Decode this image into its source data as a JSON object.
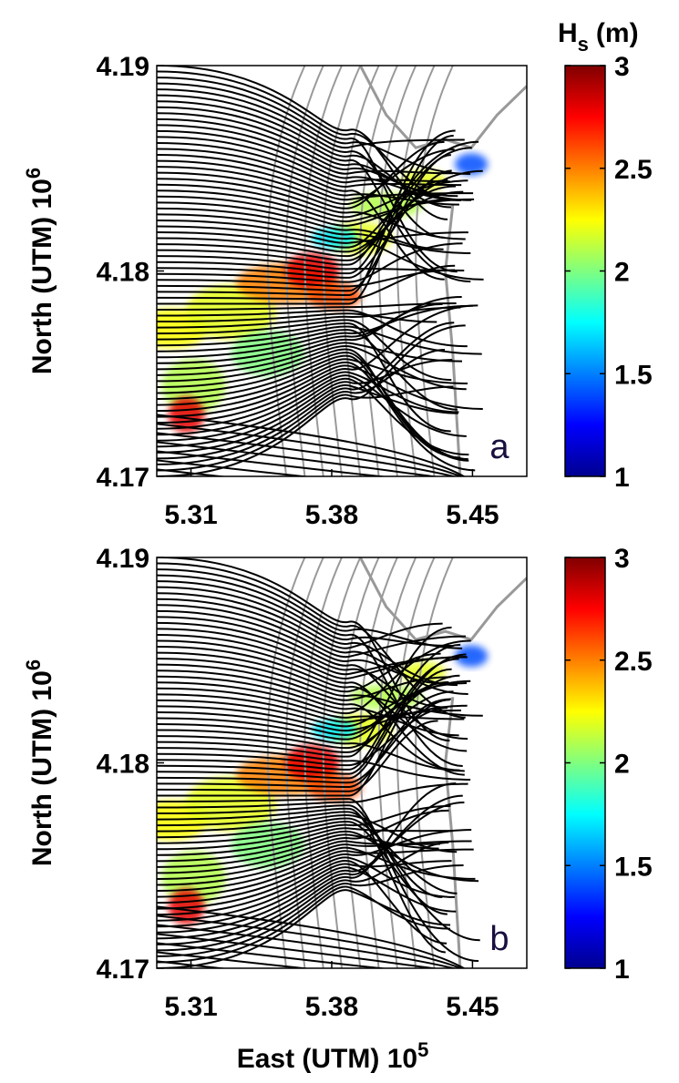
{
  "chart_data": [
    {
      "type": "map",
      "panel_label": "a",
      "xlim": [
        5.293,
        5.477
      ],
      "xticks": [
        5.31,
        5.38,
        5.45
      ],
      "ylim": [
        4.17,
        4.19
      ],
      "yticks": [
        4.19,
        4.18,
        4.17
      ],
      "y_label": "North (UTM) 10",
      "y_label_exponent": "6",
      "colorbar": {
        "title": "H",
        "title_subscript": "s",
        "title_unit": "(m)",
        "clim": [
          1,
          3
        ],
        "ticks": [
          3,
          2.5,
          2,
          1.5,
          1
        ]
      }
    },
    {
      "type": "map",
      "panel_label": "b",
      "xlim": [
        5.293,
        5.477
      ],
      "xticks": [
        5.31,
        5.38,
        5.45
      ],
      "ylim": [
        4.17,
        4.19
      ],
      "yticks": [
        4.19,
        4.18,
        4.17
      ],
      "y_label": "North (UTM) 10",
      "y_label_exponent": "6",
      "x_label": "East (UTM) 10",
      "x_label_exponent": "5",
      "colorbar": {
        "clim": [
          1,
          3
        ],
        "ticks": [
          3,
          2.5,
          2,
          1.5,
          1
        ]
      }
    }
  ]
}
